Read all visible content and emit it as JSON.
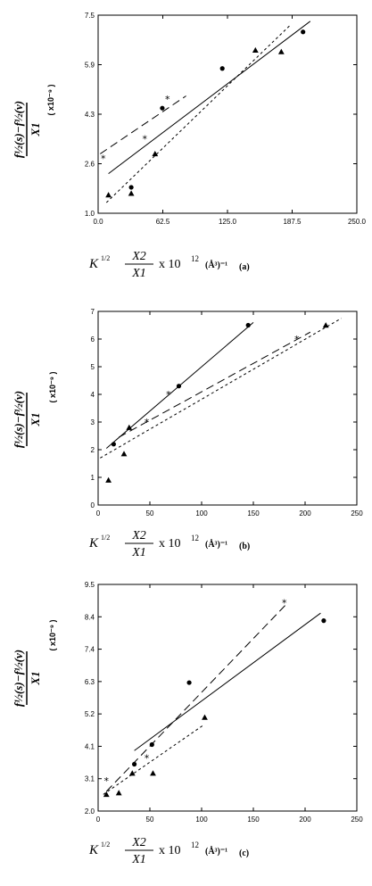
{
  "chart_data": [
    {
      "type": "scatter",
      "panel_tag": "(a)",
      "xlim": [
        0,
        250
      ],
      "ylim": [
        1.0,
        7.5
      ],
      "x_ticks": [
        "0.0",
        "62.5",
        "125.0",
        "187.5",
        "250.0"
      ],
      "y_ticks": [
        "1.0",
        "2.6",
        "4.3",
        "5.9",
        "7.5"
      ],
      "ylabel_main": "f½(s)−f½(v)",
      "ylabel_denom": "X1",
      "ylabel_unit": "( x10⁻⁹ )",
      "xlabel_prefix": "K",
      "xlabel_exp": "1/2",
      "xlabel_num": "X2",
      "xlabel_den": "X1",
      "xlabel_mid": "x 10",
      "xlabel_exp2": "12",
      "xlabel_unit": "(Å³)⁻¹",
      "series": [
        {
          "marker": "circle",
          "line": "solid",
          "points": [
            [
              32,
              1.85
            ],
            [
              62,
              4.45
            ],
            [
              120,
              5.75
            ],
            [
              198,
              6.95
            ]
          ],
          "fit": [
            [
              10,
              2.3
            ],
            [
              205,
              7.3
            ]
          ]
        },
        {
          "marker": "triangle",
          "line": "dotted",
          "points": [
            [
              10,
              1.6
            ],
            [
              32,
              1.65
            ],
            [
              55,
              2.95
            ],
            [
              152,
              6.35
            ],
            [
              177,
              6.3
            ]
          ],
          "fit": [
            [
              8,
              1.35
            ],
            [
              185,
              7.15
            ]
          ]
        },
        {
          "marker": "star",
          "line": "dashed",
          "points": [
            [
              5,
              2.8
            ],
            [
              45,
              3.45
            ],
            [
              67,
              4.75
            ]
          ],
          "fit": [
            [
              2,
              2.95
            ],
            [
              85,
              4.85
            ]
          ]
        }
      ]
    },
    {
      "type": "scatter",
      "panel_tag": "(b)",
      "xlim": [
        0,
        250
      ],
      "ylim": [
        0,
        7
      ],
      "x_ticks": [
        "0",
        "50",
        "100",
        "150",
        "200",
        "250"
      ],
      "y_ticks": [
        "0",
        "1",
        "2",
        "3",
        "4",
        "5",
        "6",
        "7"
      ],
      "ylabel_main": "f½(s)−f½(v)",
      "ylabel_denom": "X1",
      "ylabel_unit": "( x10⁻⁹ )",
      "xlabel_prefix": "K",
      "xlabel_exp": "1/2",
      "xlabel_num": "X2",
      "xlabel_den": "X1",
      "xlabel_mid": "x 10",
      "xlabel_exp2": "12",
      "xlabel_unit": "(Å³)⁻¹",
      "series": [
        {
          "marker": "circle",
          "line": "solid",
          "points": [
            [
              15,
              2.2
            ],
            [
              78,
              4.3
            ],
            [
              145,
              6.5
            ]
          ],
          "fit": [
            [
              8,
              2.05
            ],
            [
              150,
              6.6
            ]
          ]
        },
        {
          "marker": "triangle",
          "line": "dotted",
          "points": [
            [
              10,
              0.9
            ],
            [
              25,
              1.85
            ],
            [
              30,
              2.8
            ],
            [
              220,
              6.5
            ]
          ],
          "fit": [
            [
              2,
              1.7
            ],
            [
              235,
              6.75
            ]
          ]
        },
        {
          "marker": "star",
          "line": "dashed",
          "points": [
            [
              47,
              3.0
            ],
            [
              68,
              4.0
            ],
            [
              192,
              6.0
            ]
          ],
          "fit": [
            [
              20,
              2.45
            ],
            [
              205,
              6.25
            ]
          ]
        }
      ]
    },
    {
      "type": "scatter",
      "panel_tag": "(c)",
      "xlim": [
        0,
        250
      ],
      "ylim": [
        2.0,
        9.5
      ],
      "x_ticks": [
        "0",
        "50",
        "100",
        "150",
        "200",
        "250"
      ],
      "y_ticks": [
        "2.0",
        "3.1",
        "4.1",
        "5.2",
        "6.3",
        "7.4",
        "8.4",
        "9.5"
      ],
      "ylabel_main": "f½(s)−f½(v)",
      "ylabel_denom": "X1",
      "ylabel_unit": "( x10⁻⁹ )",
      "xlabel_prefix": "K",
      "xlabel_exp": "1/2",
      "xlabel_num": "X2",
      "xlabel_den": "X1",
      "xlabel_mid": "x 10",
      "xlabel_exp2": "12",
      "xlabel_unit": "(Å³)⁻¹",
      "series": [
        {
          "marker": "circle",
          "line": "solid",
          "points": [
            [
              35,
              3.55
            ],
            [
              52,
              4.2
            ],
            [
              88,
              6.25
            ],
            [
              218,
              8.3
            ]
          ],
          "fit": [
            [
              35,
              4.0
            ],
            [
              215,
              8.55
            ]
          ]
        },
        {
          "marker": "triangle",
          "line": "dotted",
          "points": [
            [
              8,
              2.55
            ],
            [
              20,
              2.6
            ],
            [
              33,
              3.25
            ],
            [
              53,
              3.25
            ],
            [
              103,
              5.1
            ]
          ],
          "fit": [
            [
              5,
              2.55
            ],
            [
              102,
              4.85
            ]
          ]
        },
        {
          "marker": "star",
          "line": "dashed",
          "points": [
            [
              8,
              3.0
            ],
            [
              47,
              3.75
            ],
            [
              180,
              8.9
            ]
          ],
          "fit": [
            [
              8,
              2.65
            ],
            [
              182,
              8.85
            ]
          ]
        }
      ]
    }
  ]
}
